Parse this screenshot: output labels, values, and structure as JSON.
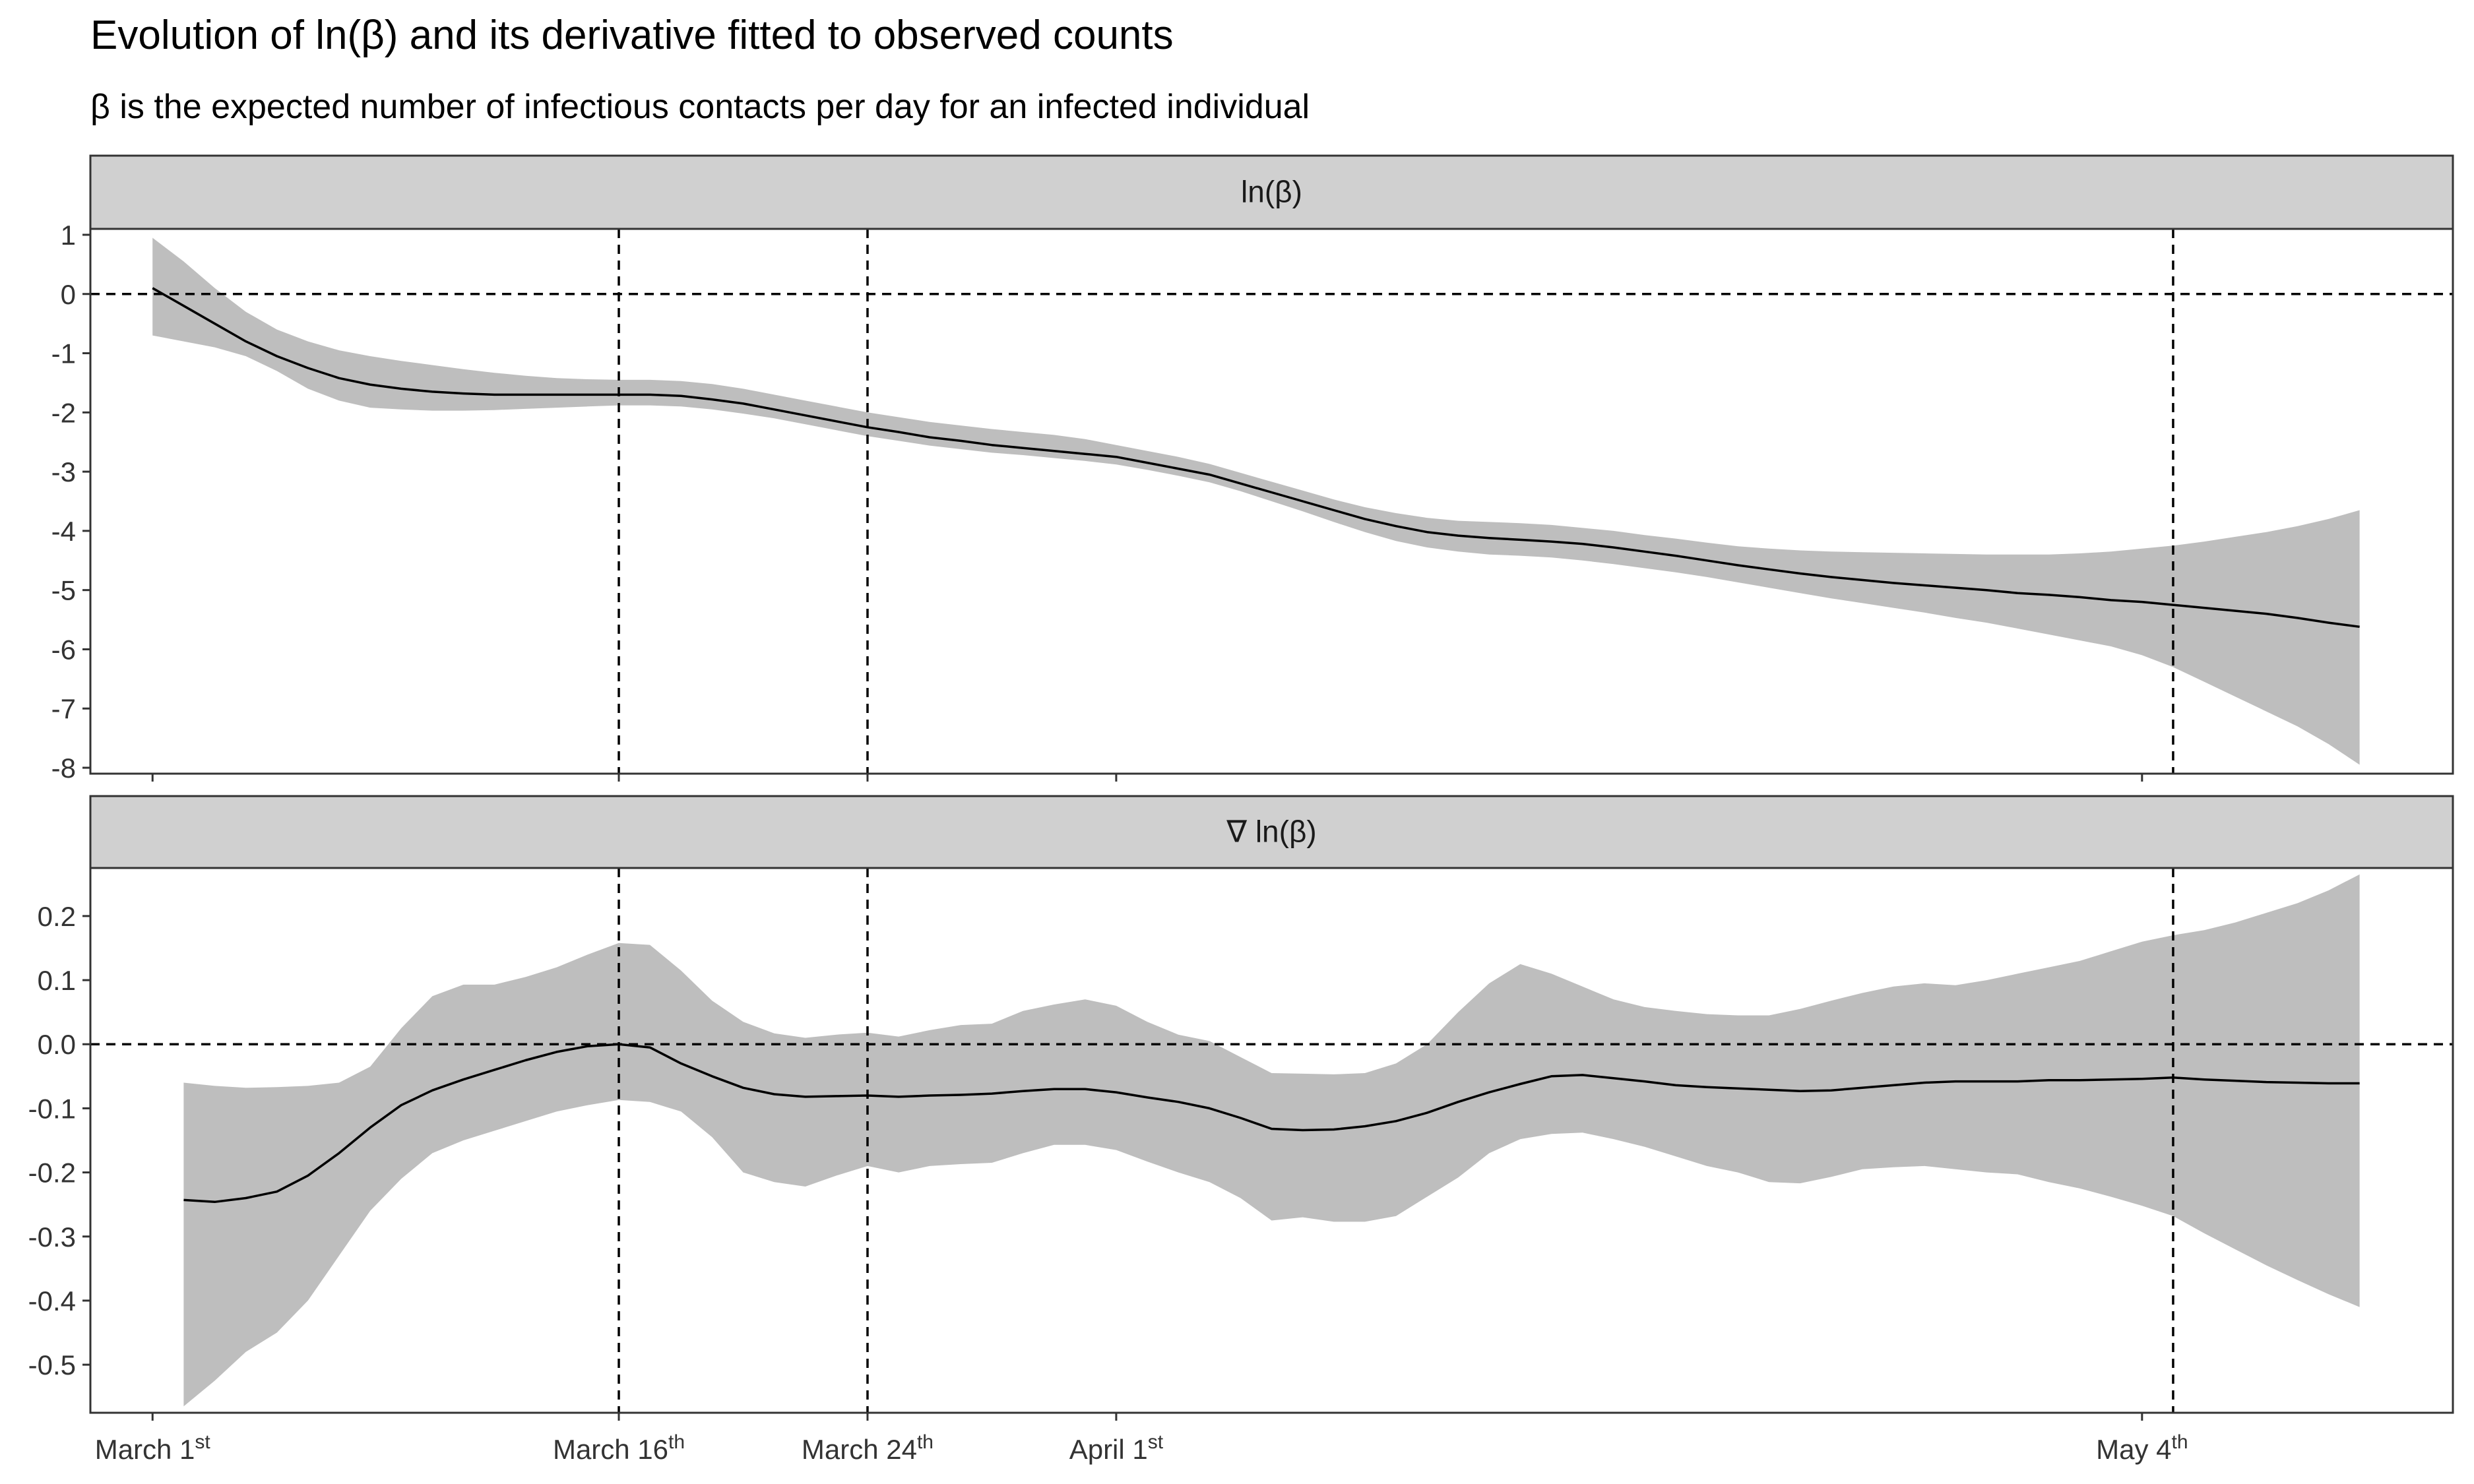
{
  "title": "Evolution of ln(β) and its derivative fitted to observed counts",
  "subtitle": "β is the expected number of infectious contacts per day for an infected individual",
  "colors": {
    "ribbon": "#bebebe",
    "line": "#000000",
    "strip": "#d0d0d0",
    "panel_border": "#333333"
  },
  "chart_data": [
    {
      "type": "area",
      "strip_label": "ln(β)",
      "x_unit": "days since March 1st",
      "x_ticks": [
        {
          "x": 0,
          "main": "March 1",
          "sup": "st"
        },
        {
          "x": 15,
          "main": "March 16",
          "sup": "th"
        },
        {
          "x": 23,
          "main": "March 24",
          "sup": "th"
        },
        {
          "x": 31,
          "main": "April 1",
          "sup": "st"
        },
        {
          "x": 64,
          "main": "May 4",
          "sup": "th"
        }
      ],
      "xlim": [
        -2,
        74
      ],
      "ylim": [
        -8.1,
        1.1
      ],
      "y_ticks": [
        1,
        0,
        -1,
        -2,
        -3,
        -4,
        -5,
        -6,
        -7,
        -8
      ],
      "hlines": [
        0
      ],
      "vlines": [
        15,
        23,
        65
      ],
      "grid": false,
      "series": [
        {
          "name": "ln(β)",
          "x": [
            0,
            1,
            2,
            3,
            4,
            5,
            6,
            7,
            8,
            9,
            10,
            11,
            12,
            13,
            14,
            15,
            16,
            17,
            18,
            19,
            20,
            21,
            22,
            23,
            24,
            25,
            26,
            27,
            28,
            29,
            30,
            31,
            32,
            33,
            34,
            35,
            36,
            37,
            38,
            39,
            40,
            41,
            42,
            43,
            44,
            45,
            46,
            47,
            48,
            49,
            50,
            51,
            52,
            53,
            54,
            55,
            56,
            57,
            58,
            59,
            60,
            61,
            62,
            63,
            64,
            65,
            66,
            67,
            68,
            69,
            70,
            71
          ],
          "values": [
            0.1,
            -0.2,
            -0.5,
            -0.8,
            -1.05,
            -1.25,
            -1.42,
            -1.53,
            -1.6,
            -1.65,
            -1.68,
            -1.7,
            -1.7,
            -1.7,
            -1.7,
            -1.7,
            -1.7,
            -1.72,
            -1.78,
            -1.85,
            -1.95,
            -2.05,
            -2.15,
            -2.25,
            -2.33,
            -2.42,
            -2.48,
            -2.55,
            -2.6,
            -2.65,
            -2.7,
            -2.75,
            -2.85,
            -2.95,
            -3.05,
            -3.2,
            -3.35,
            -3.5,
            -3.65,
            -3.8,
            -3.92,
            -4.02,
            -4.08,
            -4.12,
            -4.15,
            -4.18,
            -4.22,
            -4.28,
            -4.35,
            -4.42,
            -4.5,
            -4.58,
            -4.65,
            -4.72,
            -4.78,
            -4.83,
            -4.88,
            -4.92,
            -4.96,
            -5.0,
            -5.05,
            -5.08,
            -5.12,
            -5.17,
            -5.2,
            -5.25,
            -5.3,
            -5.35,
            -5.4,
            -5.47,
            -5.55,
            -5.62
          ],
          "lower": [
            -0.7,
            -0.8,
            -0.9,
            -1.05,
            -1.3,
            -1.6,
            -1.8,
            -1.92,
            -1.95,
            -1.97,
            -1.97,
            -1.96,
            -1.94,
            -1.92,
            -1.9,
            -1.88,
            -1.88,
            -1.9,
            -1.95,
            -2.02,
            -2.1,
            -2.2,
            -2.3,
            -2.4,
            -2.48,
            -2.56,
            -2.62,
            -2.68,
            -2.72,
            -2.77,
            -2.82,
            -2.88,
            -2.97,
            -3.07,
            -3.18,
            -3.33,
            -3.5,
            -3.67,
            -3.85,
            -4.02,
            -4.17,
            -4.28,
            -4.35,
            -4.4,
            -4.42,
            -4.45,
            -4.5,
            -4.56,
            -4.63,
            -4.7,
            -4.78,
            -4.87,
            -4.96,
            -5.05,
            -5.14,
            -5.22,
            -5.3,
            -5.38,
            -5.47,
            -5.55,
            -5.65,
            -5.75,
            -5.85,
            -5.95,
            -6.1,
            -6.3,
            -6.55,
            -6.8,
            -7.05,
            -7.3,
            -7.6,
            -7.95
          ],
          "upper": [
            0.95,
            0.55,
            0.1,
            -0.3,
            -0.6,
            -0.8,
            -0.95,
            -1.05,
            -1.13,
            -1.2,
            -1.27,
            -1.33,
            -1.38,
            -1.42,
            -1.44,
            -1.45,
            -1.45,
            -1.47,
            -1.52,
            -1.6,
            -1.7,
            -1.8,
            -1.9,
            -2.0,
            -2.08,
            -2.16,
            -2.22,
            -2.28,
            -2.33,
            -2.38,
            -2.45,
            -2.55,
            -2.65,
            -2.75,
            -2.87,
            -3.02,
            -3.17,
            -3.32,
            -3.47,
            -3.6,
            -3.7,
            -3.78,
            -3.83,
            -3.85,
            -3.87,
            -3.9,
            -3.95,
            -4.0,
            -4.07,
            -4.13,
            -4.2,
            -4.26,
            -4.3,
            -4.33,
            -4.35,
            -4.36,
            -4.37,
            -4.38,
            -4.39,
            -4.4,
            -4.4,
            -4.4,
            -4.38,
            -4.35,
            -4.3,
            -4.25,
            -4.18,
            -4.1,
            -4.02,
            -3.92,
            -3.8,
            -3.65
          ]
        }
      ]
    },
    {
      "type": "area",
      "strip_label": "∇ ln(β)",
      "x_unit": "days since March 1st",
      "x_ticks": [
        {
          "x": 0,
          "main": "March 1",
          "sup": "st"
        },
        {
          "x": 15,
          "main": "March 16",
          "sup": "th"
        },
        {
          "x": 23,
          "main": "March 24",
          "sup": "th"
        },
        {
          "x": 31,
          "main": "April 1",
          "sup": "st"
        },
        {
          "x": 64,
          "main": "May 4",
          "sup": "th"
        }
      ],
      "xlim": [
        -2,
        74
      ],
      "ylim": [
        -0.575,
        0.275
      ],
      "y_ticks": [
        0.2,
        0.1,
        0.0,
        -0.1,
        -0.2,
        -0.3,
        -0.4,
        -0.5
      ],
      "y_tick_labels": [
        "0.2",
        "0.1",
        "0.0",
        "-0.1",
        "-0.2",
        "-0.3",
        "-0.4",
        "-0.5"
      ],
      "hlines": [
        0
      ],
      "vlines": [
        15,
        23,
        65
      ],
      "grid": false,
      "series": [
        {
          "name": "∇ ln(β)",
          "x": [
            1,
            2,
            3,
            4,
            5,
            6,
            7,
            8,
            9,
            10,
            11,
            12,
            13,
            14,
            15,
            16,
            17,
            18,
            19,
            20,
            21,
            22,
            23,
            24,
            25,
            26,
            27,
            28,
            29,
            30,
            31,
            32,
            33,
            34,
            35,
            36,
            37,
            38,
            39,
            40,
            41,
            42,
            43,
            44,
            45,
            46,
            47,
            48,
            49,
            50,
            51,
            52,
            53,
            54,
            55,
            56,
            57,
            58,
            59,
            60,
            61,
            62,
            63,
            64,
            65,
            66,
            67,
            68,
            69,
            70,
            71
          ],
          "values": [
            -0.243,
            -0.246,
            -0.24,
            -0.23,
            -0.205,
            -0.17,
            -0.13,
            -0.095,
            -0.072,
            -0.055,
            -0.04,
            -0.025,
            -0.012,
            -0.003,
            0.0,
            -0.005,
            -0.03,
            -0.05,
            -0.068,
            -0.078,
            -0.082,
            -0.081,
            -0.08,
            -0.082,
            -0.08,
            -0.079,
            -0.077,
            -0.073,
            -0.07,
            -0.07,
            -0.075,
            -0.083,
            -0.09,
            -0.1,
            -0.115,
            -0.132,
            -0.134,
            -0.133,
            -0.128,
            -0.12,
            -0.107,
            -0.09,
            -0.075,
            -0.062,
            -0.05,
            -0.048,
            -0.053,
            -0.058,
            -0.064,
            -0.067,
            -0.069,
            -0.071,
            -0.073,
            -0.072,
            -0.068,
            -0.064,
            -0.06,
            -0.058,
            -0.058,
            -0.058,
            -0.056,
            -0.056,
            -0.055,
            -0.054,
            -0.052,
            -0.055,
            -0.057,
            -0.059,
            -0.06,
            -0.061,
            -0.061
          ],
          "lower": [
            -0.565,
            -0.525,
            -0.48,
            -0.45,
            -0.4,
            -0.33,
            -0.26,
            -0.21,
            -0.17,
            -0.15,
            -0.135,
            -0.12,
            -0.105,
            -0.095,
            -0.087,
            -0.09,
            -0.105,
            -0.145,
            -0.2,
            -0.215,
            -0.222,
            -0.205,
            -0.19,
            -0.2,
            -0.19,
            -0.187,
            -0.185,
            -0.17,
            -0.157,
            -0.157,
            -0.165,
            -0.183,
            -0.2,
            -0.215,
            -0.24,
            -0.275,
            -0.27,
            -0.277,
            -0.277,
            -0.268,
            -0.238,
            -0.208,
            -0.17,
            -0.148,
            -0.14,
            -0.138,
            -0.148,
            -0.16,
            -0.175,
            -0.19,
            -0.2,
            -0.215,
            -0.217,
            -0.207,
            -0.195,
            -0.192,
            -0.19,
            -0.195,
            -0.2,
            -0.203,
            -0.215,
            -0.225,
            -0.238,
            -0.252,
            -0.268,
            -0.295,
            -0.32,
            -0.345,
            -0.368,
            -0.39,
            -0.41
          ],
          "upper": [
            -0.06,
            -0.065,
            -0.068,
            -0.067,
            -0.065,
            -0.06,
            -0.035,
            0.025,
            0.075,
            0.093,
            0.093,
            0.105,
            0.12,
            0.14,
            0.158,
            0.155,
            0.115,
            0.068,
            0.035,
            0.017,
            0.01,
            0.015,
            0.018,
            0.012,
            0.022,
            0.03,
            0.032,
            0.052,
            0.062,
            0.07,
            0.06,
            0.035,
            0.015,
            0.005,
            -0.02,
            -0.045,
            -0.046,
            -0.047,
            -0.045,
            -0.03,
            0.0,
            0.05,
            0.095,
            0.125,
            0.11,
            0.09,
            0.07,
            0.058,
            0.052,
            0.047,
            0.045,
            0.045,
            0.055,
            0.068,
            0.08,
            0.09,
            0.095,
            0.092,
            0.1,
            0.11,
            0.12,
            0.13,
            0.145,
            0.16,
            0.17,
            0.178,
            0.19,
            0.205,
            0.22,
            0.24,
            0.265
          ]
        }
      ]
    }
  ]
}
